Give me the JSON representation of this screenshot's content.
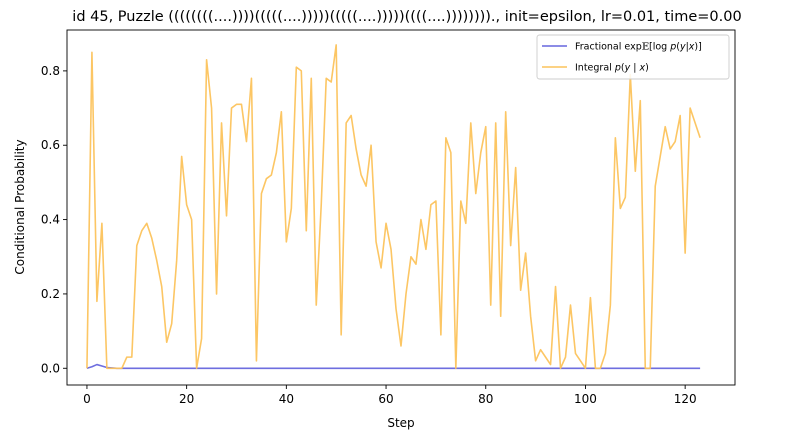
{
  "chart_data": {
    "type": "line",
    "title": "id 45, Puzzle ((((((((....))))(((((....)))))(((((....)))))((((....))))))))., init=epsilon, lr=0.01, time=0.00",
    "xlabel": "Step",
    "ylabel": "Conditional Probability",
    "xlim": [
      -4,
      130
    ],
    "ylim": [
      -0.045,
      0.91
    ],
    "xticks": [
      0,
      20,
      40,
      60,
      80,
      100,
      120
    ],
    "yticks": [
      0.0,
      0.2,
      0.4,
      0.6,
      0.8
    ],
    "ytick_labels": [
      "0.0",
      "0.2",
      "0.4",
      "0.6",
      "0.8"
    ],
    "grid": false,
    "legend_position": "top-right",
    "series": [
      {
        "name": "Fractional exp 𝔼[log p(y|x)]",
        "color": "#6666dd",
        "x": [
          0,
          1,
          2,
          3,
          4,
          5,
          6,
          7,
          8,
          10,
          20,
          30,
          40,
          50,
          60,
          70,
          80,
          90,
          100,
          110,
          120,
          123
        ],
        "y": [
          0.0,
          0.004,
          0.01,
          0.006,
          0.002,
          0.001,
          0.0,
          0.0,
          0.0,
          0.0,
          0.0,
          0.0,
          0.0,
          0.0,
          0.0,
          0.0,
          0.0,
          0.0,
          0.0,
          0.0,
          0.0,
          0.0
        ]
      },
      {
        "name": "Integral p(y | x)",
        "color": "#fcc35c",
        "x": [
          0,
          1,
          2,
          3,
          4,
          5,
          6,
          7,
          8,
          9,
          10,
          11,
          12,
          13,
          14,
          15,
          16,
          17,
          18,
          19,
          20,
          21,
          22,
          23,
          24,
          25,
          26,
          27,
          28,
          29,
          30,
          31,
          32,
          33,
          34,
          35,
          36,
          37,
          38,
          39,
          40,
          41,
          42,
          43,
          44,
          45,
          46,
          47,
          48,
          49,
          50,
          51,
          52,
          53,
          54,
          55,
          56,
          57,
          58,
          59,
          60,
          61,
          62,
          63,
          64,
          65,
          66,
          67,
          68,
          69,
          70,
          71,
          72,
          73,
          74,
          75,
          76,
          77,
          78,
          79,
          80,
          81,
          82,
          83,
          84,
          85,
          86,
          87,
          88,
          89,
          90,
          91,
          92,
          93,
          94,
          95,
          96,
          97,
          98,
          99,
          100,
          101,
          102,
          103,
          104,
          105,
          106,
          107,
          108,
          109,
          110,
          111,
          112,
          113,
          114,
          115,
          116,
          117,
          118,
          119,
          120,
          121,
          122,
          123
        ],
        "y": [
          0.0,
          0.85,
          0.18,
          0.39,
          0.0,
          0.0,
          0.0,
          0.0,
          0.03,
          0.03,
          0.33,
          0.37,
          0.39,
          0.35,
          0.29,
          0.22,
          0.07,
          0.12,
          0.29,
          0.57,
          0.44,
          0.4,
          0.0,
          0.08,
          0.83,
          0.7,
          0.2,
          0.66,
          0.41,
          0.7,
          0.71,
          0.71,
          0.61,
          0.78,
          0.02,
          0.47,
          0.51,
          0.52,
          0.58,
          0.69,
          0.34,
          0.43,
          0.81,
          0.8,
          0.37,
          0.78,
          0.17,
          0.44,
          0.78,
          0.77,
          0.87,
          0.09,
          0.66,
          0.68,
          0.59,
          0.52,
          0.49,
          0.6,
          0.34,
          0.27,
          0.39,
          0.32,
          0.16,
          0.06,
          0.2,
          0.3,
          0.28,
          0.4,
          0.32,
          0.44,
          0.45,
          0.09,
          0.62,
          0.58,
          0.0,
          0.45,
          0.39,
          0.66,
          0.47,
          0.58,
          0.65,
          0.17,
          0.66,
          0.14,
          0.69,
          0.33,
          0.54,
          0.21,
          0.31,
          0.14,
          0.02,
          0.05,
          0.03,
          0.01,
          0.22,
          0.0,
          0.03,
          0.17,
          0.04,
          0.02,
          0.0,
          0.19,
          0.0,
          0.0,
          0.04,
          0.17,
          0.62,
          0.43,
          0.46,
          0.79,
          0.53,
          0.72,
          0.0,
          0.0,
          0.49,
          0.57,
          0.65,
          0.59,
          0.61,
          0.68,
          0.31,
          0.7,
          0.66,
          0.62
        ]
      }
    ]
  }
}
